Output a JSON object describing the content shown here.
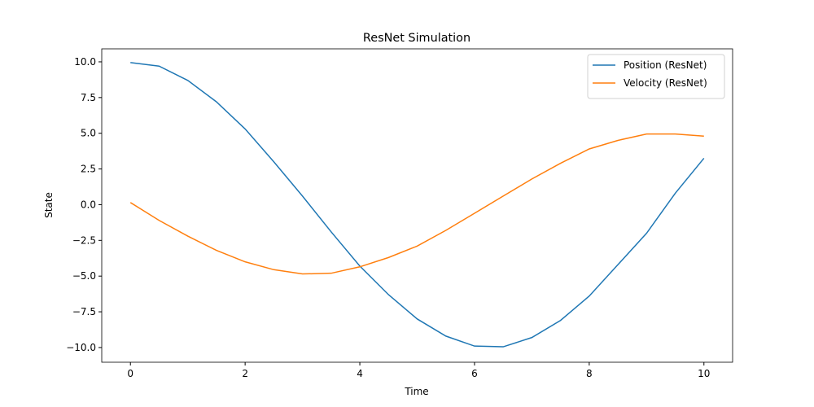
{
  "chart_data": {
    "type": "line",
    "title": "ResNet Simulation",
    "xlabel": "Time",
    "ylabel": "State",
    "x": [
      0,
      0.5,
      1,
      1.5,
      2,
      2.5,
      3,
      3.5,
      4,
      4.5,
      5,
      5.5,
      6,
      6.5,
      7,
      7.5,
      8,
      8.5,
      9,
      9.5,
      10
    ],
    "series": [
      {
        "name": "Position (ResNet)",
        "color": "#1f77b4",
        "values": [
          9.95,
          9.7,
          8.7,
          7.2,
          5.3,
          3.0,
          0.6,
          -1.9,
          -4.3,
          -6.3,
          -8.0,
          -9.2,
          -9.9,
          -9.95,
          -9.3,
          -8.1,
          -6.4,
          -4.2,
          -2.0,
          0.8,
          3.25
        ]
      },
      {
        "name": "Velocity (ResNet)",
        "color": "#ff7f0e",
        "values": [
          0.15,
          -1.1,
          -2.2,
          -3.2,
          -4.0,
          -4.55,
          -4.85,
          -4.8,
          -4.35,
          -3.7,
          -2.9,
          -1.8,
          -0.6,
          0.6,
          1.8,
          2.9,
          3.9,
          4.5,
          4.95,
          4.95,
          4.8
        ]
      }
    ],
    "xlim": [
      -0.5,
      10.5
    ],
    "xticks": [
      0,
      2,
      4,
      6,
      8,
      10
    ],
    "ylim": [
      -11.03,
      10.91
    ],
    "yticks": [
      {
        "value": -10,
        "label": "−10.0"
      },
      {
        "value": -7.5,
        "label": "−7.5"
      },
      {
        "value": -5,
        "label": "−5.0"
      },
      {
        "value": -2.5,
        "label": "−2.5"
      },
      {
        "value": 0,
        "label": "0.0"
      },
      2.5,
      {
        "value": 5,
        "label": "5.0"
      },
      7.5,
      {
        "value": 10,
        "label": "10.0"
      }
    ],
    "legend": "upper right"
  }
}
